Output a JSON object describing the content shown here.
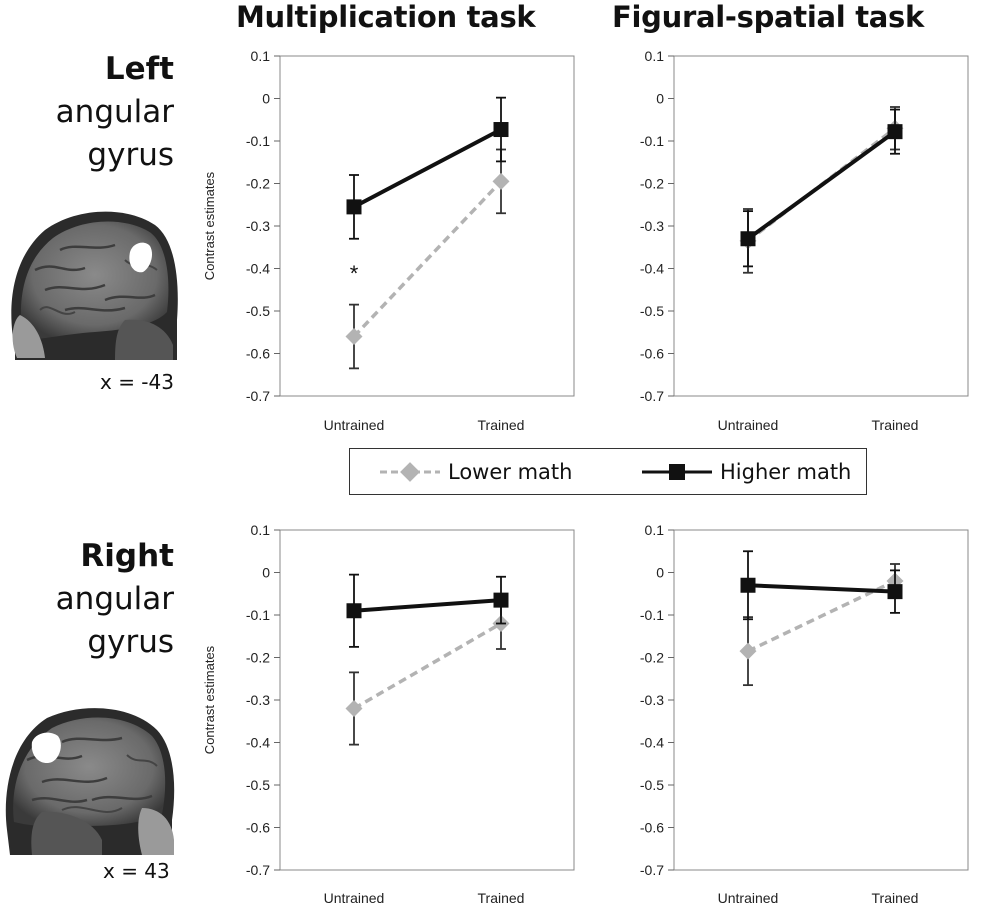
{
  "titles": {
    "col1": "Multiplication task",
    "col2": "Figural-spatial task"
  },
  "rows": {
    "top": {
      "bold": "Left",
      "line1": "angular",
      "line2": "gyrus",
      "coord": "x = -43"
    },
    "bottom": {
      "bold": "Right",
      "line1": "angular",
      "line2": "gyrus",
      "coord": "x = 43"
    }
  },
  "legend": {
    "lower": "Lower math",
    "higher": "Higher math"
  },
  "colors": {
    "lower": "#b3b3b3",
    "higher": "#111111"
  },
  "chart_data": [
    {
      "type": "line",
      "panel": "left-multiplication",
      "categories": [
        "Untrained",
        "Trained"
      ],
      "ylabel": "Contrast estimates",
      "ylim": [
        -0.7,
        0.1
      ],
      "yticks": [
        "0.1",
        "0",
        "-0.1",
        "-0.2",
        "-0.3",
        "-0.4",
        "-0.5",
        "-0.6",
        "-0.7"
      ],
      "series": [
        {
          "name": "Lower math",
          "values": [
            -0.56,
            -0.195
          ],
          "err": [
            0.075,
            0.075
          ]
        },
        {
          "name": "Higher math",
          "values": [
            -0.255,
            -0.073
          ],
          "err": [
            0.075,
            0.075
          ]
        }
      ],
      "annotations": [
        {
          "text": "*",
          "category": 0,
          "y": -0.41
        }
      ]
    },
    {
      "type": "line",
      "panel": "left-figural",
      "categories": [
        "Untrained",
        "Trained"
      ],
      "ylabel": "",
      "ylim": [
        -0.7,
        0.1
      ],
      "yticks": [
        "0.1",
        "0",
        "-0.1",
        "-0.2",
        "-0.3",
        "-0.4",
        "-0.5",
        "-0.6",
        "-0.7"
      ],
      "series": [
        {
          "name": "Lower math",
          "values": [
            -0.335,
            -0.07
          ],
          "err": [
            0.075,
            0.05
          ]
        },
        {
          "name": "Higher math",
          "values": [
            -0.33,
            -0.078
          ],
          "err": [
            0.065,
            0.052
          ]
        }
      ],
      "annotations": []
    },
    {
      "type": "line",
      "panel": "right-multiplication",
      "categories": [
        "Untrained",
        "Trained"
      ],
      "ylabel": "Contrast estimates",
      "ylim": [
        -0.7,
        0.1
      ],
      "yticks": [
        "0.1",
        "0",
        "-0.1",
        "-0.2",
        "-0.3",
        "-0.4",
        "-0.5",
        "-0.6",
        "-0.7"
      ],
      "series": [
        {
          "name": "Lower math",
          "values": [
            -0.32,
            -0.12
          ],
          "err": [
            0.085,
            0.06
          ]
        },
        {
          "name": "Higher math",
          "values": [
            -0.09,
            -0.065
          ],
          "err": [
            0.085,
            0.055
          ]
        }
      ],
      "annotations": []
    },
    {
      "type": "line",
      "panel": "right-figural",
      "categories": [
        "Untrained",
        "Trained"
      ],
      "ylabel": "",
      "ylim": [
        -0.7,
        0.1
      ],
      "yticks": [
        "0.1",
        "0",
        "-0.1",
        "-0.2",
        "-0.3",
        "-0.4",
        "-0.5",
        "-0.6",
        "-0.7"
      ],
      "series": [
        {
          "name": "Lower math",
          "values": [
            -0.185,
            -0.02
          ],
          "err": [
            0.08,
            0.04
          ]
        },
        {
          "name": "Higher math",
          "values": [
            -0.03,
            -0.045
          ],
          "err": [
            0.08,
            0.05
          ]
        }
      ],
      "annotations": []
    }
  ]
}
